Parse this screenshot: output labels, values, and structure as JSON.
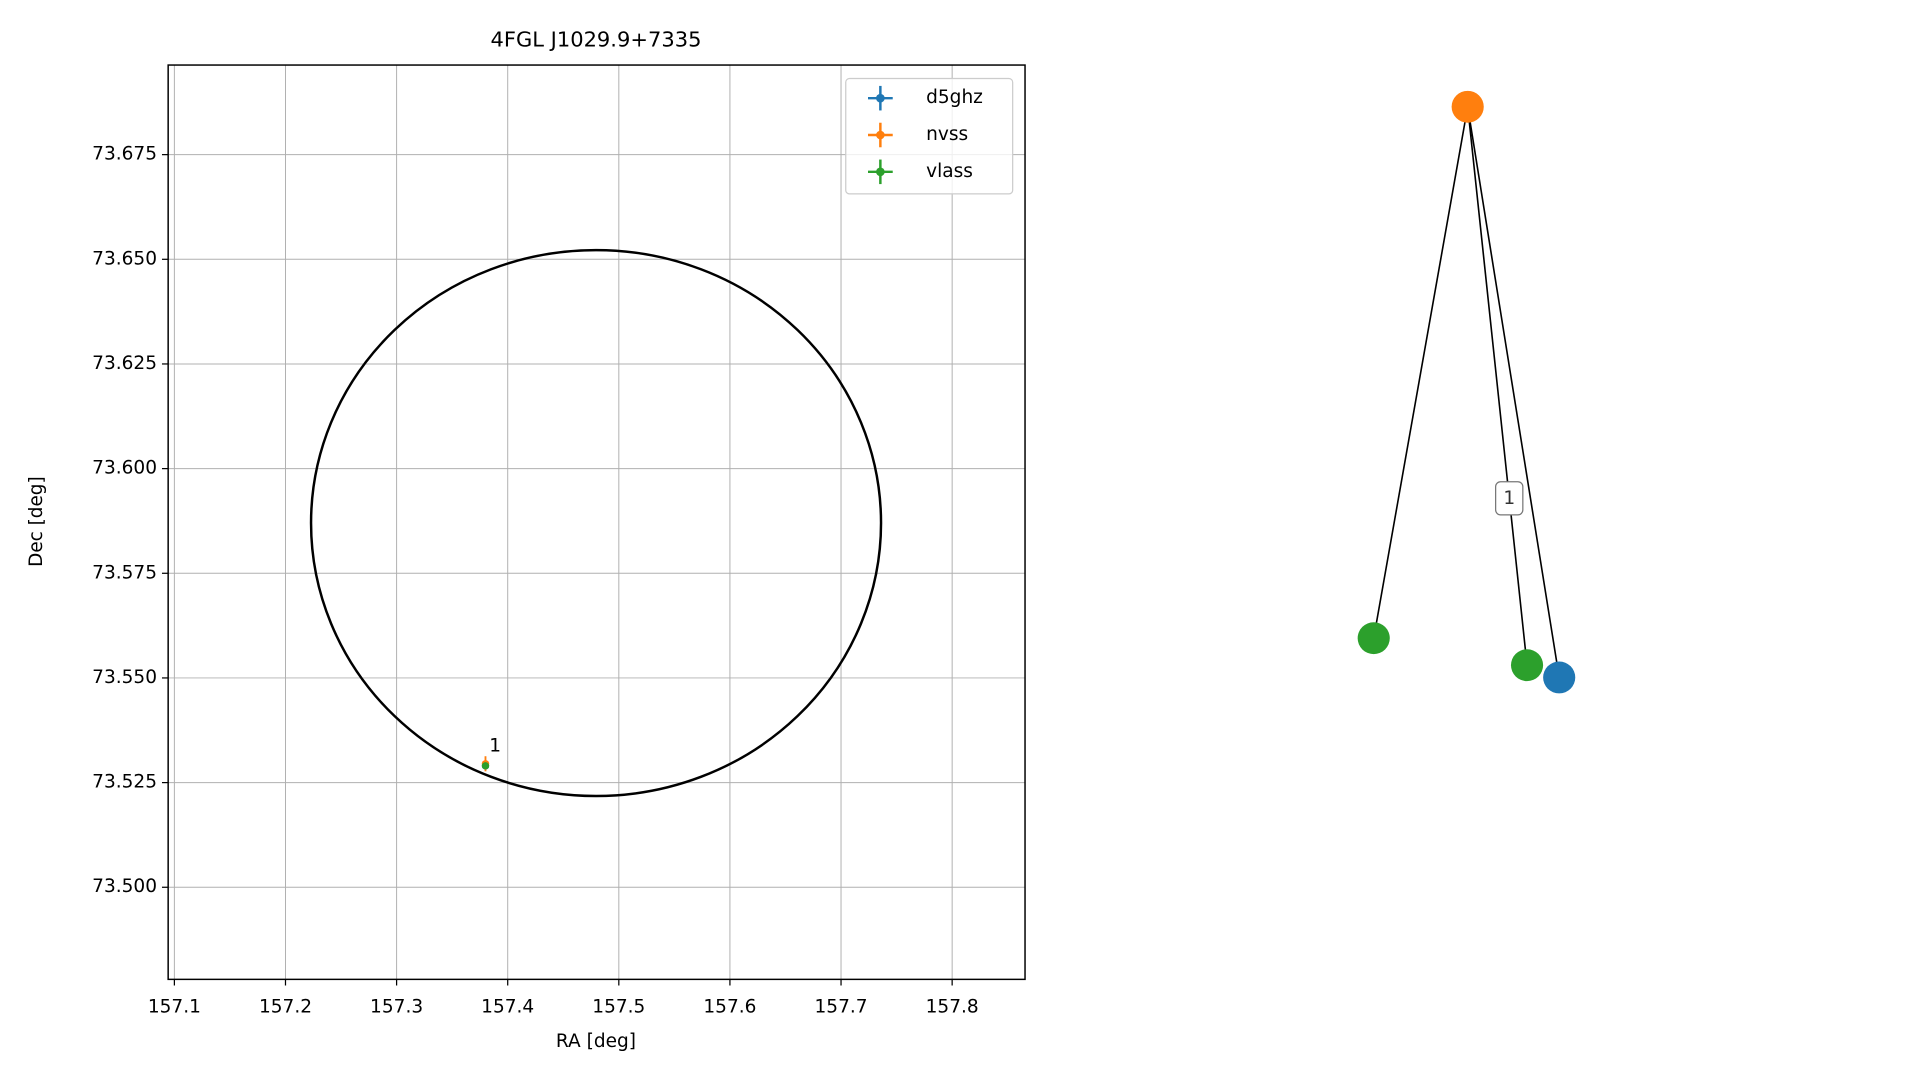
{
  "chart_data": [
    {
      "type": "scatter",
      "title": "4FGL J1029.9+7335",
      "xlabel": "RA [deg]",
      "ylabel": "Dec [deg]",
      "xlim": [
        157.0944,
        157.8656
      ],
      "ylim": [
        73.478,
        73.6964
      ],
      "xticks": [
        157.1,
        157.2,
        157.3,
        157.4,
        157.5,
        157.6,
        157.7,
        157.8
      ],
      "yticks": [
        {
          "value": 73.5,
          "label": "73.500"
        },
        73.525,
        {
          "value": 73.55,
          "label": "73.550"
        },
        73.575,
        {
          "value": 73.6,
          "label": "73.600"
        },
        73.625,
        {
          "value": 73.65,
          "label": "73.650"
        },
        73.675
      ],
      "grid": true,
      "legend": "upper right",
      "ellipse": {
        "ra": 157.4795,
        "dec": 73.587,
        "ra_radius": 0.2565,
        "dec_radius": 0.0652,
        "color": "#000000"
      },
      "series": [
        {
          "name": "d5ghz",
          "color": "#1f77b4",
          "x": [
            157.38
          ],
          "y": [
            73.529
          ],
          "xerr": [
            0.002
          ],
          "yerr": [
            0.0005
          ]
        },
        {
          "name": "nvss",
          "color": "#ff7f0e",
          "x": [
            157.38
          ],
          "y": [
            73.5295
          ],
          "xerr": [
            0.002
          ],
          "yerr": [
            0.0018
          ]
        },
        {
          "name": "vlass",
          "color": "#2ca02c",
          "x": [
            157.38
          ],
          "y": [
            73.529
          ],
          "xerr": [
            0.002
          ],
          "yerr": [
            0.0005
          ]
        }
      ],
      "annotations": [
        {
          "text": "1",
          "x": 157.38,
          "y": 73.5295
        }
      ]
    },
    {
      "type": "graph",
      "nodes": [
        {
          "color": "#ff7f0e"
        },
        {
          "color": "#2ca02c"
        },
        {
          "color": "#2ca02c"
        },
        {
          "color": "#1f77b4"
        }
      ],
      "edges": [
        {
          "source": 0,
          "target": 1
        },
        {
          "source": 0,
          "target": 2,
          "label": "1"
        },
        {
          "source": 0,
          "target": 3
        }
      ]
    }
  ]
}
